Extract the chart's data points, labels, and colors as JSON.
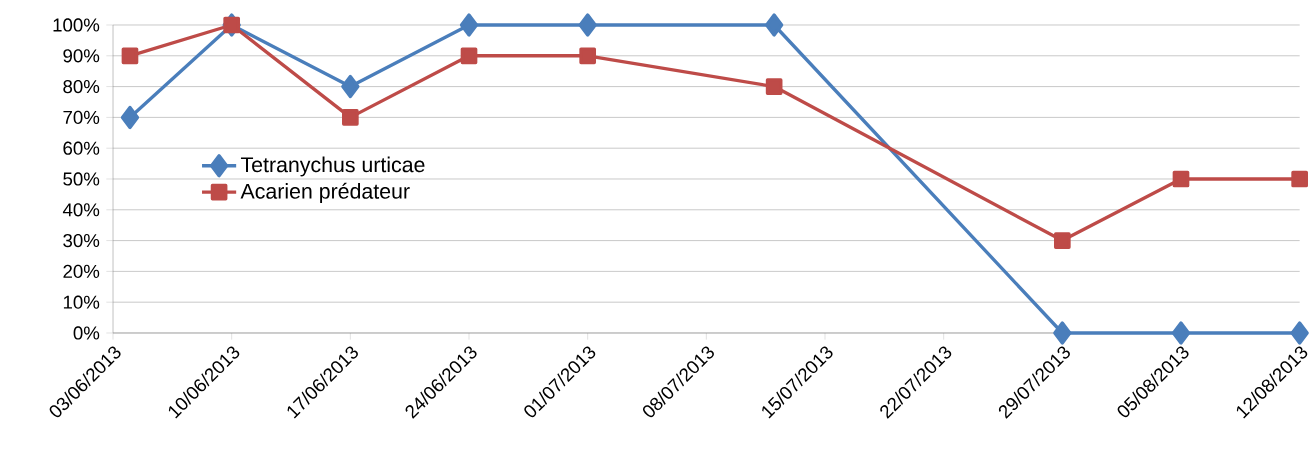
{
  "chart_data": {
    "type": "line",
    "x": [
      "2013-06-04",
      "2013-06-10",
      "2013-06-17",
      "2013-06-24",
      "2013-07-01",
      "2013-07-12",
      "2013-07-29",
      "2013-08-05",
      "2013-08-12"
    ],
    "series": [
      {
        "name": "Tetranychus urticae",
        "color": "#4a7ebb",
        "marker": "diamond",
        "values": [
          70,
          100,
          80,
          100,
          100,
          100,
          0,
          0,
          0
        ]
      },
      {
        "name": "Acarien prédateur",
        "color": "#be4b48",
        "marker": "square",
        "values": [
          90,
          100,
          70,
          90,
          90,
          80,
          30,
          50,
          50
        ]
      }
    ],
    "xlim": [
      "2013-06-03",
      "2013-08-12"
    ],
    "xticks": [
      {
        "value": "2013-06-03",
        "label": "03/06/2013"
      },
      {
        "value": "2013-06-10",
        "label": "10/06/2013"
      },
      {
        "value": "2013-06-17",
        "label": "17/06/2013"
      },
      {
        "value": "2013-06-24",
        "label": "24/06/2013"
      },
      {
        "value": "2013-07-01",
        "label": "01/07/2013"
      },
      {
        "value": "2013-07-08",
        "label": "08/07/2013"
      },
      {
        "value": "2013-07-15",
        "label": "15/07/2013"
      },
      {
        "value": "2013-07-22",
        "label": "22/07/2013"
      },
      {
        "value": "2013-07-29",
        "label": "29/07/2013"
      },
      {
        "value": "2013-08-05",
        "label": "05/08/2013"
      },
      {
        "value": "2013-08-12",
        "label": "12/08/2013"
      }
    ],
    "ylim": [
      0,
      100
    ],
    "yticks": [
      {
        "value": 0,
        "label": "0%"
      },
      {
        "value": 10,
        "label": "10%"
      },
      {
        "value": 20,
        "label": "20%"
      },
      {
        "value": 30,
        "label": "30%"
      },
      {
        "value": 40,
        "label": "40%"
      },
      {
        "value": 50,
        "label": "50%"
      },
      {
        "value": 60,
        "label": "60%"
      },
      {
        "value": 70,
        "label": "70%"
      },
      {
        "value": 80,
        "label": "80%"
      },
      {
        "value": 90,
        "label": "90%"
      },
      {
        "value": 100,
        "label": "100%"
      }
    ],
    "grid": "y",
    "legend": "left",
    "line_style": "solid"
  }
}
